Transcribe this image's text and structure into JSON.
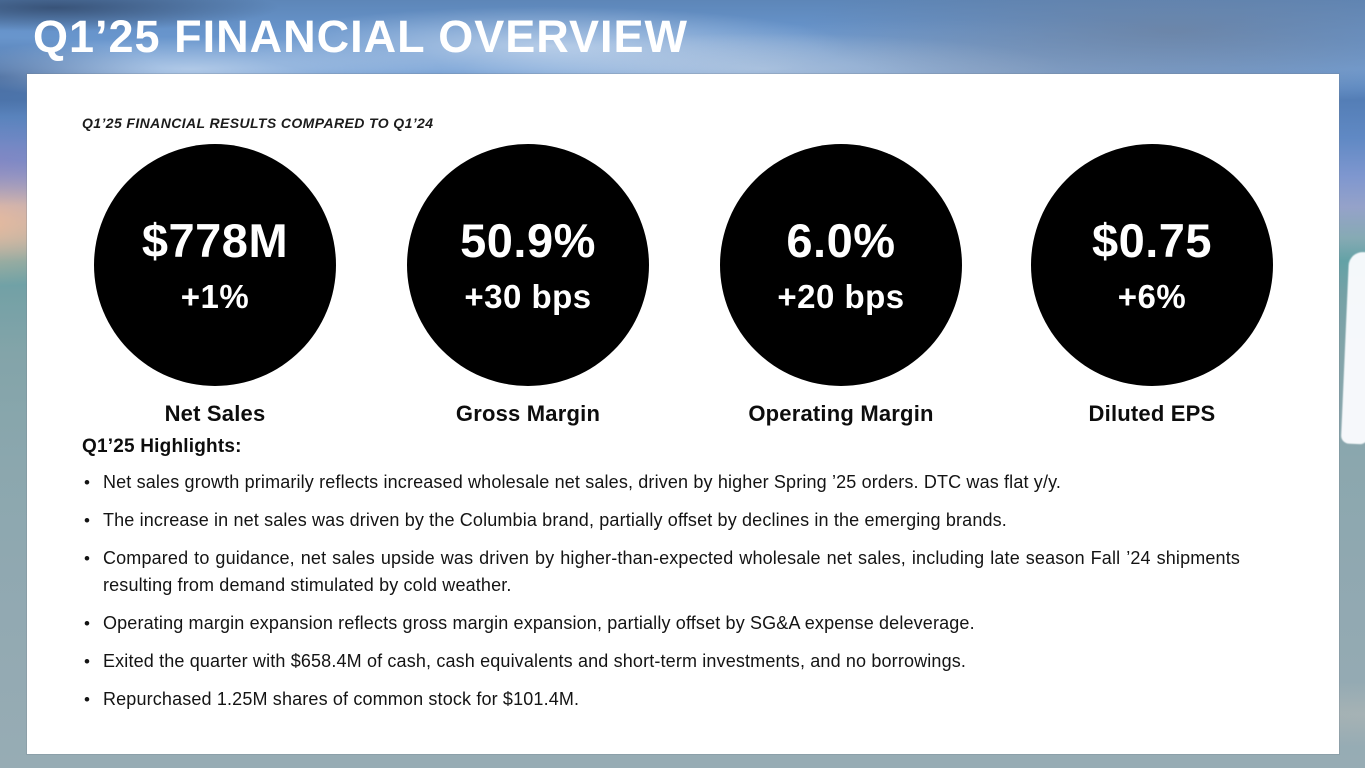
{
  "slide": {
    "title": "Q1’25 FINANCIAL OVERVIEW",
    "subtitle": "Q1’25 FINANCIAL RESULTS COMPARED TO Q1’24",
    "metrics": [
      {
        "value": "$778M",
        "change": "+1%",
        "label": "Net Sales"
      },
      {
        "value": "50.9%",
        "change": "+30 bps",
        "label": "Gross Margin"
      },
      {
        "value": "6.0%",
        "change": "+20 bps",
        "label": "Operating Margin"
      },
      {
        "value": "$0.75",
        "change": "+6%",
        "label": "Diluted EPS"
      }
    ],
    "highlights_title": "Q1’25 Highlights:",
    "highlights": [
      "Net sales growth primarily reflects increased wholesale net sales, driven by higher Spring ’25 orders. DTC was flat y/y.",
      "The increase in net sales was driven by the Columbia brand, partially offset by declines in the emerging brands.",
      "Compared to guidance, net sales upside was driven by higher-than-expected wholesale net sales, including late season Fall ’24 shipments resulting from demand stimulated by cold weather.",
      "Operating margin expansion reflects gross margin expansion, partially offset by SG&A expense deleverage.",
      "Exited the quarter with $658.4M of cash, cash equivalents and short-term investments, and no borrowings.",
      "Repurchased 1.25M shares of common stock for $101.4M."
    ],
    "colors": {
      "circle_fill": "#000000",
      "circle_text": "#ffffff",
      "card_background": "#ffffff",
      "title_text": "#ffffff",
      "body_text": "#141414"
    }
  }
}
